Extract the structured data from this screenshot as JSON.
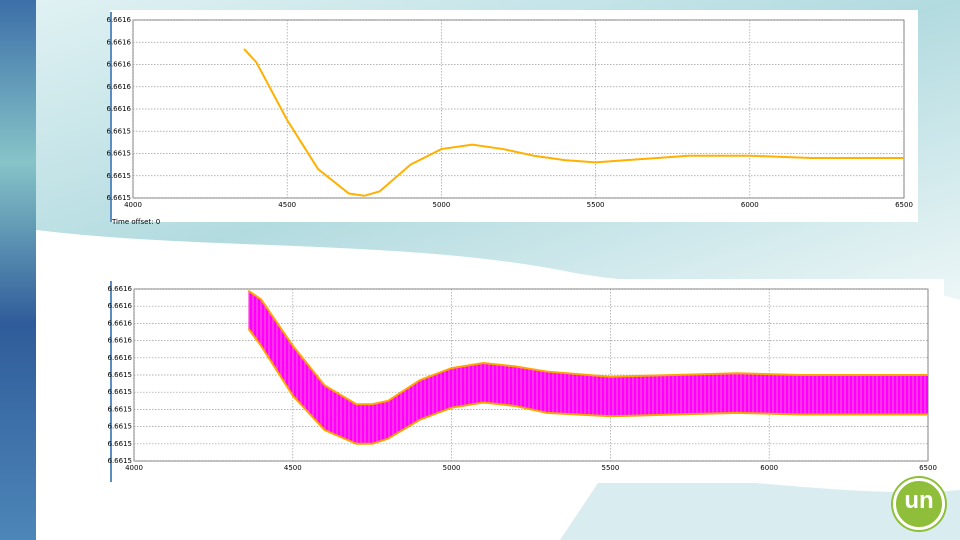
{
  "chart_data": [
    {
      "type": "line",
      "x": [
        4360,
        4400,
        4500,
        4600,
        4700,
        4750,
        4800,
        4900,
        5000,
        5100,
        5200,
        5300,
        5400,
        5500,
        5600,
        5700,
        5800,
        5900,
        6000,
        6200,
        6500
      ],
      "series": [
        {
          "color": "#ffb000",
          "values": [
            6.661577,
            6.661571,
            6.661545,
            6.661523,
            6.661512,
            6.661511,
            6.661513,
            6.661525,
            6.661532,
            6.661534,
            6.661532,
            6.661529,
            6.661527,
            6.661526,
            6.661527,
            6.661528,
            6.661529,
            6.661529,
            6.661529,
            6.661528,
            6.661528
          ]
        }
      ],
      "xlim": [
        4000,
        6500
      ],
      "xticks": [
        4000,
        4500,
        5000,
        5500,
        6000,
        6500
      ],
      "ylim": [
        6.66151,
        6.66159
      ],
      "yticks": [
        {
          "value": 6.66159,
          "label": "6.6616"
        },
        {
          "value": 6.66158,
          "label": "6.6616"
        },
        {
          "value": 6.66157,
          "label": "6.6616"
        },
        {
          "value": 6.66156,
          "label": "6.6616"
        },
        {
          "value": 6.66155,
          "label": "6.6616"
        },
        {
          "value": 6.66154,
          "label": "6.6615"
        },
        {
          "value": 6.66153,
          "label": "6.6615"
        },
        {
          "value": 6.66152,
          "label": "6.6615"
        },
        {
          "value": 6.66151,
          "label": "6.6615"
        }
      ],
      "grid": true,
      "annotation": "Time offset:  0"
    },
    {
      "type": "band",
      "x": [
        4360,
        4400,
        4500,
        4600,
        4700,
        4750,
        4800,
        4900,
        5000,
        5100,
        5200,
        5300,
        5500,
        5700,
        5900,
        6100,
        6500
      ],
      "series": [
        {
          "color": "#ffa500",
          "values": [
            6.661589,
            6.661584,
            6.661557,
            6.661534,
            6.661523,
            6.661523,
            6.661525,
            6.661537,
            6.661544,
            6.661547,
            6.661545,
            6.661542,
            6.661539,
            6.66154,
            6.661541,
            6.66154,
            6.66154
          ]
        },
        {
          "color": "#ffa500",
          "values": [
            6.661567,
            6.661557,
            6.661528,
            6.661508,
            6.6615,
            6.6615,
            6.661503,
            6.661514,
            6.661521,
            6.661524,
            6.661522,
            6.661518,
            6.661516,
            6.661517,
            6.661518,
            6.661517,
            6.661517
          ]
        }
      ],
      "fill": "#ff00ff",
      "xlim": [
        4000,
        6500
      ],
      "xticks": [
        4000,
        4500,
        5000,
        5500,
        6000,
        6500
      ],
      "ylim": [
        6.66149,
        6.66159
      ],
      "yticks": [
        {
          "value": 6.66159,
          "label": "6.6616"
        },
        {
          "value": 6.66158,
          "label": "6.6616"
        },
        {
          "value": 6.66157,
          "label": "6.6616"
        },
        {
          "value": 6.66156,
          "label": "6.6616"
        },
        {
          "value": 6.66155,
          "label": "6.6616"
        },
        {
          "value": 6.66154,
          "label": "6.6615"
        },
        {
          "value": 6.66153,
          "label": "6.6615"
        },
        {
          "value": 6.66152,
          "label": "6.6615"
        },
        {
          "value": 6.66151,
          "label": "6.6615"
        },
        {
          "value": 6.6615,
          "label": "6.6615"
        },
        {
          "value": 6.66149,
          "label": "6.6615"
        }
      ],
      "grid": true
    }
  ],
  "logo": {
    "text": "un"
  }
}
